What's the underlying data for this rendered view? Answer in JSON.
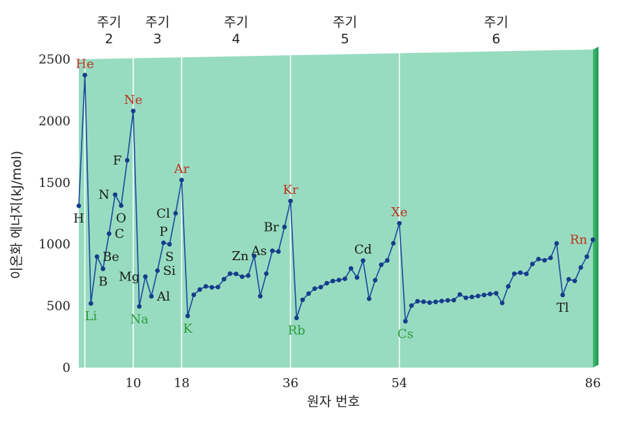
{
  "chart_data": {
    "type": "line",
    "title": "",
    "xlabel": "원자 번호",
    "ylabel": "이온화 에너지(kJ/mol)",
    "ylim": [
      0,
      2500
    ],
    "xlim": [
      1,
      86
    ],
    "y_ticks": [
      "0",
      "500",
      "1000",
      "1500",
      "2000",
      "2500"
    ],
    "x_ticks": [
      {
        "value": 10,
        "label": "10"
      },
      {
        "value": 18,
        "label": "18"
      },
      {
        "value": 36,
        "label": "36"
      },
      {
        "value": 54,
        "label": "54"
      },
      {
        "value": 86,
        "label": "86"
      }
    ],
    "period_boundaries": [
      2,
      10,
      18,
      36,
      54,
      86
    ],
    "periods": [
      {
        "word": "주기",
        "num": "2",
        "center": 6
      },
      {
        "word": "주기",
        "num": "3",
        "center": 14
      },
      {
        "word": "주기",
        "num": "4",
        "center": 27
      },
      {
        "word": "주기",
        "num": "5",
        "center": 45
      },
      {
        "word": "주기",
        "num": "6",
        "center": 70
      }
    ],
    "series": [
      {
        "x": [
          1,
          2,
          3,
          4,
          5,
          6,
          7,
          8,
          9,
          10,
          11,
          12,
          13,
          14,
          15,
          16,
          17,
          18,
          19,
          20,
          21,
          22,
          23,
          24,
          25,
          26,
          27,
          28,
          29,
          30,
          31,
          32,
          33,
          34,
          35,
          36,
          37,
          38,
          39,
          40,
          41,
          42,
          43,
          44,
          45,
          46,
          47,
          48,
          49,
          50,
          51,
          52,
          53,
          54,
          55,
          56,
          57,
          58,
          59,
          60,
          61,
          62,
          63,
          64,
          65,
          66,
          67,
          68,
          69,
          70,
          71,
          72,
          73,
          74,
          75,
          76,
          77,
          78,
          79,
          80,
          81,
          82,
          83,
          84,
          85,
          86
        ],
        "y": [
          1312,
          2372,
          520,
          900,
          801,
          1086,
          1402,
          1314,
          1681,
          2081,
          496,
          738,
          578,
          786,
          1012,
          1000,
          1251,
          1521,
          419,
          590,
          633,
          659,
          651,
          653,
          717,
          762,
          760,
          737,
          746,
          906,
          579,
          762,
          947,
          941,
          1140,
          1351,
          403,
          550,
          600,
          640,
          652,
          684,
          702,
          710,
          720,
          804,
          731,
          868,
          558,
          709,
          834,
          869,
          1008,
          1170,
          376,
          503,
          538,
          534,
          527,
          533,
          540,
          545,
          547,
          593,
          566,
          573,
          581,
          589,
          597,
          603,
          524,
          659,
          761,
          770,
          760,
          840,
          880,
          870,
          890,
          1007,
          589,
          716,
          703,
          812,
          900,
          1037
        ]
      }
    ],
    "colors": {
      "plot_background": "#97dcc0",
      "grid": "#ffffff",
      "line": "#1f4ea0",
      "marker": "#163c8a",
      "noble_gas_label": "#c0311f",
      "alkali_label": "#2e9a3c",
      "other_label": "#1a1a1a",
      "right_edge": "#2eaa5c"
    },
    "annotations": [
      {
        "text": "He",
        "z": 2,
        "kind": "noble",
        "pos": "above"
      },
      {
        "text": "Ne",
        "z": 10,
        "kind": "noble",
        "pos": "above"
      },
      {
        "text": "Ar",
        "z": 18,
        "kind": "noble",
        "pos": "above"
      },
      {
        "text": "Kr",
        "z": 36,
        "kind": "noble",
        "pos": "above"
      },
      {
        "text": "Xe",
        "z": 54,
        "kind": "noble",
        "pos": "above"
      },
      {
        "text": "Rn",
        "z": 86,
        "kind": "noble",
        "pos": "left"
      },
      {
        "text": "Li",
        "z": 3,
        "kind": "alkali",
        "pos": "below"
      },
      {
        "text": "Na",
        "z": 11,
        "kind": "alkali",
        "pos": "below"
      },
      {
        "text": "K",
        "z": 19,
        "kind": "alkali",
        "pos": "below"
      },
      {
        "text": "Rb",
        "z": 37,
        "kind": "alkali",
        "pos": "below"
      },
      {
        "text": "Cs",
        "z": 55,
        "kind": "alkali",
        "pos": "below"
      },
      {
        "text": "H",
        "z": 1,
        "kind": "other",
        "pos": "below"
      },
      {
        "text": "Be",
        "z": 4,
        "kind": "other",
        "pos": "right"
      },
      {
        "text": "B",
        "z": 5,
        "kind": "other",
        "pos": "below"
      },
      {
        "text": "C",
        "z": 6,
        "kind": "other",
        "pos": "right"
      },
      {
        "text": "N",
        "z": 7,
        "kind": "other",
        "pos": "left"
      },
      {
        "text": "O",
        "z": 8,
        "kind": "other",
        "pos": "below"
      },
      {
        "text": "F",
        "z": 9,
        "kind": "other",
        "pos": "left"
      },
      {
        "text": "Mg",
        "z": 12,
        "kind": "other",
        "pos": "left"
      },
      {
        "text": "Al",
        "z": 13,
        "kind": "other",
        "pos": "right"
      },
      {
        "text": "Si",
        "z": 14,
        "kind": "other",
        "pos": "right"
      },
      {
        "text": "P",
        "z": 15,
        "kind": "other",
        "pos": "above"
      },
      {
        "text": "S",
        "z": 16,
        "kind": "other",
        "pos": "below"
      },
      {
        "text": "Cl",
        "z": 17,
        "kind": "other",
        "pos": "left"
      },
      {
        "text": "Zn",
        "z": 30,
        "kind": "other",
        "pos": "left"
      },
      {
        "text": "As",
        "z": 33,
        "kind": "other",
        "pos": "left"
      },
      {
        "text": "Br",
        "z": 35,
        "kind": "other",
        "pos": "left"
      },
      {
        "text": "Cd",
        "z": 48,
        "kind": "other",
        "pos": "above"
      },
      {
        "text": "Tl",
        "z": 81,
        "kind": "other",
        "pos": "below"
      }
    ]
  }
}
